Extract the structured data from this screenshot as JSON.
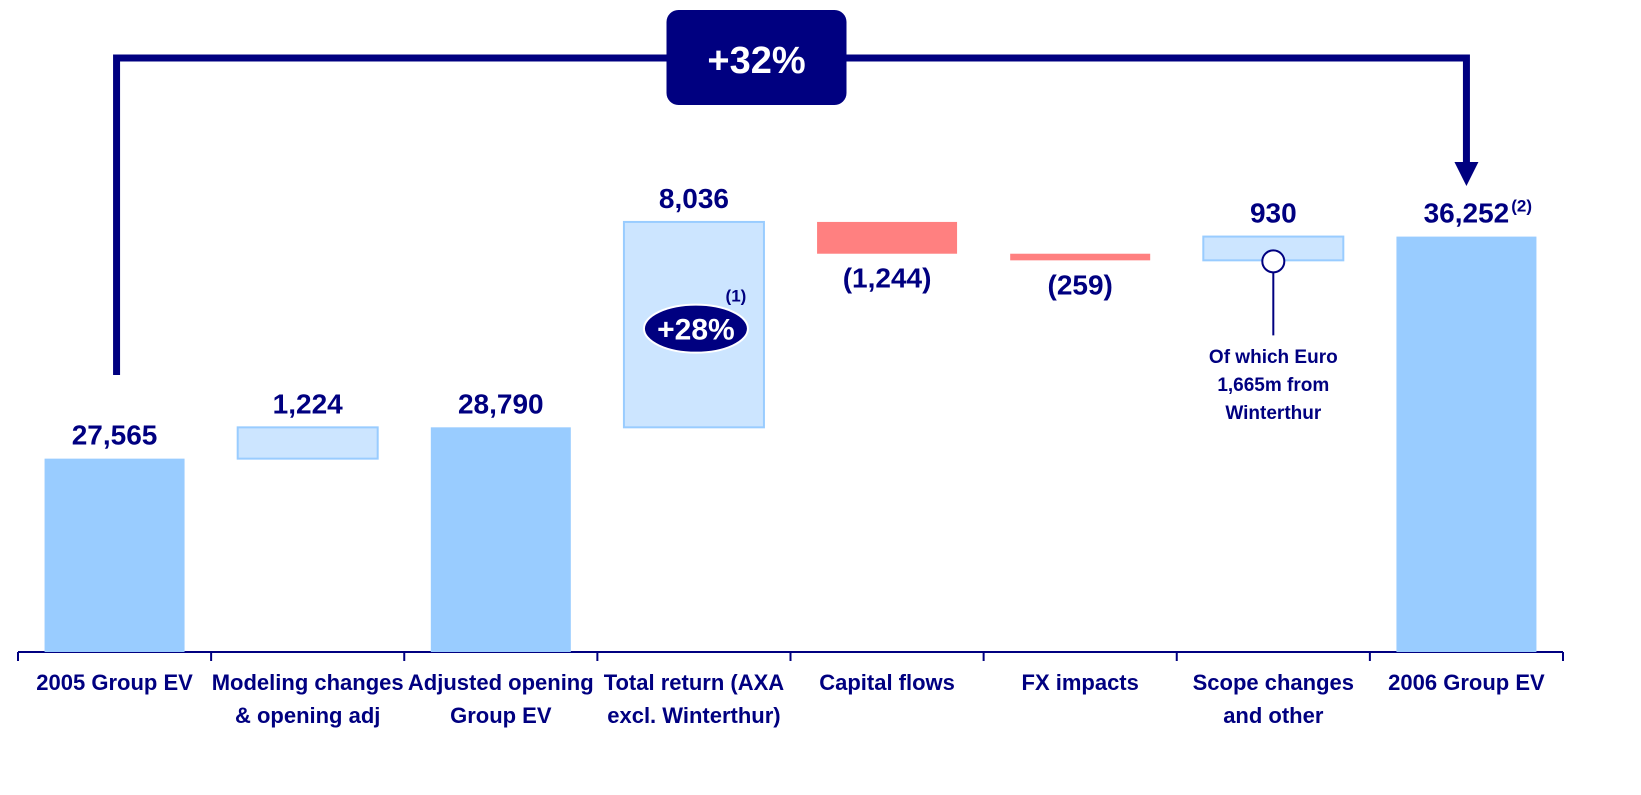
{
  "chart_data": {
    "type": "waterfall",
    "categories": [
      "2005 Group EV",
      "Modeling changes & opening adj",
      "Adjusted opening Group EV",
      "Total return (AXA excl. Winterthur)",
      "Capital flows",
      "FX impacts",
      "Scope changes and other",
      "2006 Group EV"
    ],
    "values": [
      27565,
      1224,
      28790,
      8036,
      -1244,
      -259,
      930,
      36252
    ],
    "value_labels": [
      "27,565",
      "1,224",
      "28,790",
      "8,036",
      "(1,244)",
      "(259)",
      "930",
      "36,252"
    ],
    "measure": [
      "absolute",
      "relative",
      "total",
      "relative",
      "relative",
      "relative",
      "relative",
      "total"
    ],
    "colors": {
      "total": "#99ccff",
      "increase": "#cce5ff",
      "decrease": "#ff8080"
    },
    "ylim": [
      20000,
      45000
    ],
    "annotations": {
      "total_change": "+32%",
      "return_pct": "+28%",
      "footnote_1": "(1)",
      "footnote_2": "(2)",
      "scope_note": "Of which Euro 1,665m from Winterthur"
    }
  }
}
